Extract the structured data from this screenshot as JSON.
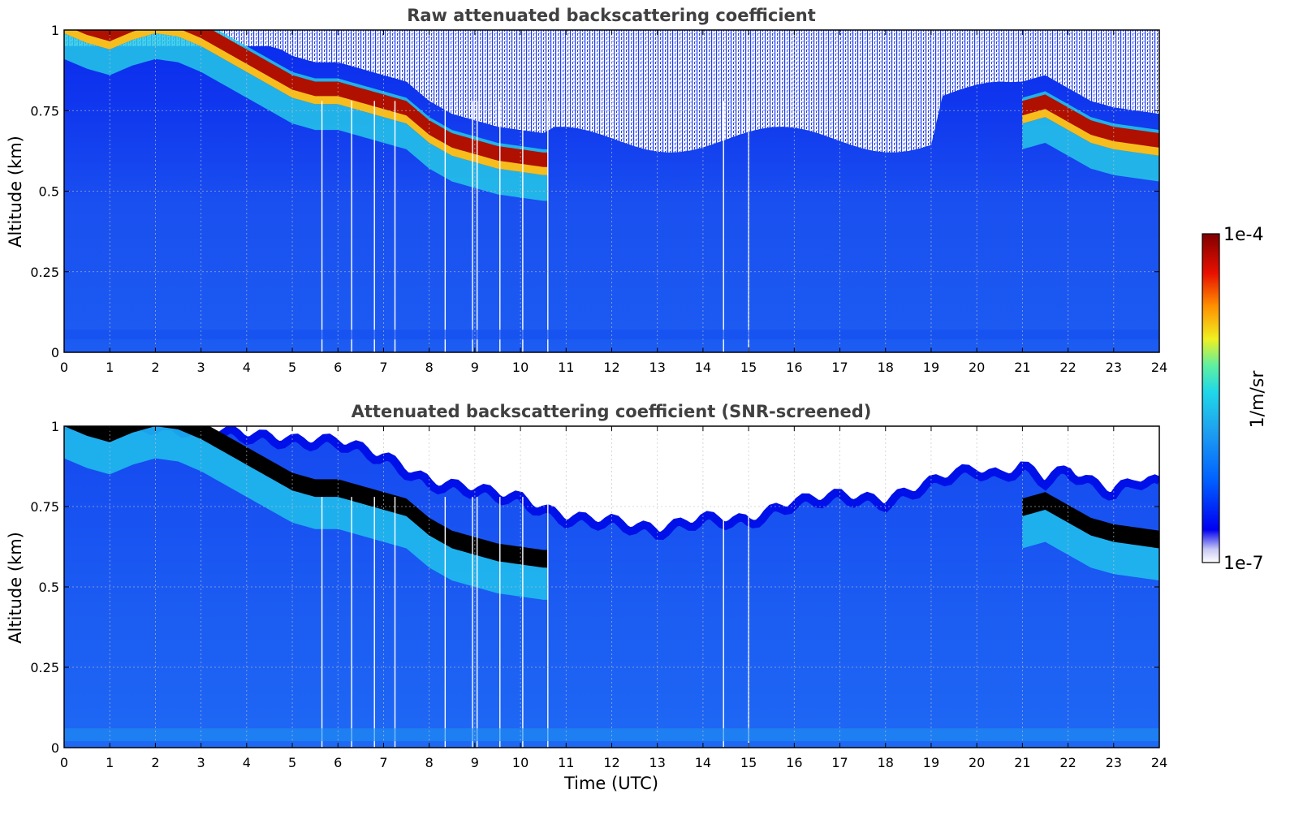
{
  "colors": {
    "colormap": [
      "#ffffff",
      "#c8c8f5",
      "#0000f0",
      "#0060ff",
      "#1ea0f0",
      "#20d8e8",
      "#60f0a0",
      "#f0f020",
      "#ff9000",
      "#e81000",
      "#800000"
    ],
    "saturated_screened": "#000000",
    "title_color": "#404040",
    "grid": "#bbbbbb"
  },
  "colorbar": {
    "max_label": "1e-4",
    "min_label": "1e-7",
    "unit_label": "1/m/sr",
    "scale": "log"
  },
  "chart_data": [
    {
      "type": "heatmap",
      "title": "Raw attenuated backscattering coefficient",
      "xlabel": "",
      "ylabel": "Altitude (km)",
      "xlim": [
        0,
        24
      ],
      "ylim": [
        0,
        1
      ],
      "xticks": [
        "0",
        "1",
        "2",
        "3",
        "4",
        "5",
        "6",
        "7",
        "8",
        "9",
        "10",
        "11",
        "12",
        "13",
        "14",
        "15",
        "16",
        "17",
        "18",
        "19",
        "20",
        "21",
        "22",
        "23",
        "24"
      ],
      "yticks": [
        "0",
        "0.25",
        "0.5",
        "0.75",
        "1"
      ],
      "grid": true,
      "cloud_base_km": {
        "time_utc": [
          0,
          0.5,
          1,
          1.5,
          2,
          2.5,
          3,
          3.5,
          4,
          4.5,
          5,
          5.5,
          6,
          6.5,
          7,
          7.5,
          8,
          8.5,
          9,
          9.5,
          10,
          10.5,
          10.6,
          21,
          21.5,
          22,
          22.5,
          23,
          23.5,
          24
        ],
        "altitude_km": [
          1.0,
          0.97,
          0.95,
          0.98,
          1.0,
          0.99,
          0.96,
          0.92,
          0.88,
          0.84,
          0.8,
          0.78,
          0.78,
          0.76,
          0.74,
          0.72,
          0.66,
          0.62,
          0.6,
          0.58,
          0.57,
          0.56,
          0.56,
          0.72,
          0.74,
          0.7,
          0.66,
          0.64,
          0.63,
          0.62
        ]
      },
      "noise_dropouts_utc": [
        5.65,
        6.3,
        6.8,
        7.25,
        8.35,
        8.95,
        9.05,
        9.55,
        10.05,
        10.6,
        14.45,
        15.0
      ]
    },
    {
      "type": "heatmap",
      "title": "Attenuated backscattering coefficient (SNR-screened)",
      "xlabel": "Time (UTC)",
      "ylabel": "Altitude (km)",
      "xlim": [
        0,
        24
      ],
      "ylim": [
        0,
        1
      ],
      "xticks": [
        "0",
        "1",
        "2",
        "3",
        "4",
        "5",
        "6",
        "7",
        "8",
        "9",
        "10",
        "11",
        "12",
        "13",
        "14",
        "15",
        "16",
        "17",
        "18",
        "19",
        "20",
        "21",
        "22",
        "23",
        "24"
      ],
      "yticks": [
        "0",
        "0.25",
        "0.5",
        "0.75",
        "1"
      ],
      "grid": true,
      "valid_top_km": {
        "time_utc": [
          0,
          2,
          4,
          5,
          6,
          7,
          7.5,
          8,
          9,
          10,
          10.6,
          11,
          12,
          13,
          14,
          15,
          16,
          17,
          18,
          19,
          19.5,
          20,
          20.5,
          21,
          21.5,
          22,
          22.5,
          23,
          23.5,
          24
        ],
        "altitude_km": [
          1.0,
          1.0,
          0.97,
          0.95,
          0.95,
          0.9,
          0.86,
          0.82,
          0.8,
          0.77,
          0.73,
          0.71,
          0.7,
          0.67,
          0.71,
          0.7,
          0.76,
          0.78,
          0.76,
          0.82,
          0.85,
          0.86,
          0.84,
          0.87,
          0.83,
          0.86,
          0.82,
          0.79,
          0.83,
          0.82
        ]
      }
    }
  ]
}
